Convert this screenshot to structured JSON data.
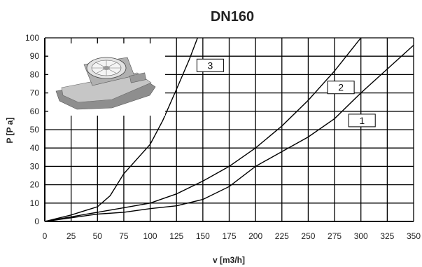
{
  "chart_data": {
    "type": "line",
    "title": "DN160",
    "xlabel": "v [m3/h]",
    "ylabel": "P [P a]",
    "xlim": [
      0,
      350
    ],
    "ylim": [
      0,
      100
    ],
    "x_ticks": [
      "0",
      "25",
      "50",
      "75",
      "100",
      "125",
      "150",
      "175",
      "200",
      "225",
      "250",
      "275",
      "300",
      "325",
      "350"
    ],
    "y_ticks": [
      "0",
      "10",
      "20",
      "30",
      "40",
      "50",
      "60",
      "70",
      "80",
      "90",
      "100"
    ],
    "grid": true,
    "series": [
      {
        "name": "1",
        "points": [
          [
            0,
            0
          ],
          [
            25,
            2
          ],
          [
            50,
            4
          ],
          [
            75,
            5
          ],
          [
            100,
            7
          ],
          [
            125,
            8.5
          ],
          [
            150,
            12
          ],
          [
            175,
            19
          ],
          [
            200,
            30
          ],
          [
            225,
            38
          ],
          [
            250,
            46
          ],
          [
            275,
            56
          ],
          [
            300,
            70
          ],
          [
            325,
            83
          ],
          [
            350,
            96
          ]
        ]
      },
      {
        "name": "2",
        "points": [
          [
            0,
            0
          ],
          [
            25,
            2.5
          ],
          [
            50,
            5
          ],
          [
            75,
            7.5
          ],
          [
            100,
            10
          ],
          [
            125,
            15
          ],
          [
            150,
            22
          ],
          [
            175,
            30
          ],
          [
            200,
            40
          ],
          [
            225,
            52
          ],
          [
            250,
            66
          ],
          [
            275,
            82
          ],
          [
            300,
            100
          ]
        ]
      },
      {
        "name": "3",
        "points": [
          [
            0,
            0
          ],
          [
            25,
            3.5
          ],
          [
            50,
            8
          ],
          [
            62,
            14
          ],
          [
            75,
            26
          ],
          [
            100,
            42
          ],
          [
            112,
            55
          ],
          [
            125,
            72
          ],
          [
            137,
            88
          ],
          [
            145,
            100
          ]
        ]
      }
    ],
    "curve_labels": [
      {
        "text": "3",
        "x": 157,
        "y": 85
      },
      {
        "text": "2",
        "x": 281,
        "y": 73
      },
      {
        "text": "1",
        "x": 301,
        "y": 55
      }
    ]
  }
}
